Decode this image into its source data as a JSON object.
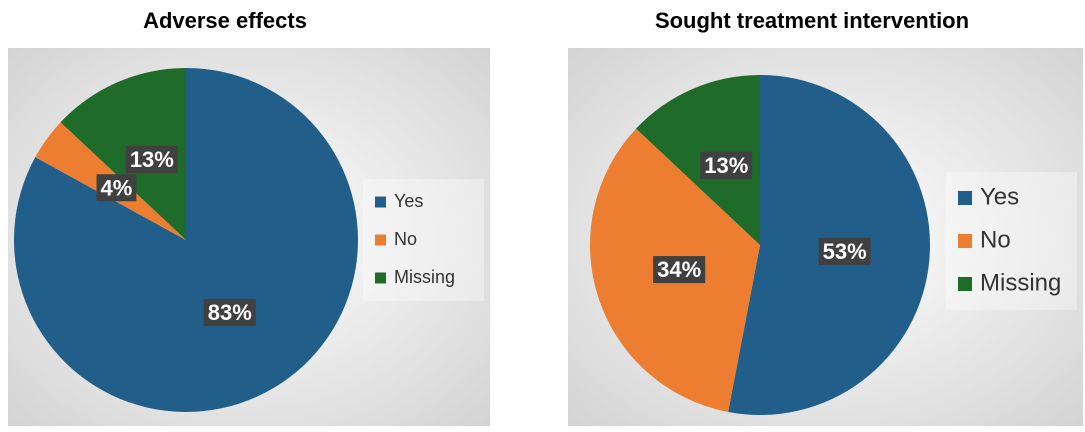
{
  "chart_data": [
    {
      "type": "pie",
      "title": "Adverse effects",
      "categories": [
        "Yes",
        "No",
        "Missing"
      ],
      "values": [
        83,
        4,
        13
      ],
      "value_labels": [
        "83%",
        "4%",
        "13%"
      ],
      "colors": [
        "#215f8a",
        "#ed7d31",
        "#1e6b2a"
      ],
      "legend": "right"
    },
    {
      "type": "pie",
      "title": "Sought treatment intervention",
      "categories": [
        "Yes",
        "No",
        "Missing"
      ],
      "values": [
        53,
        34,
        13
      ],
      "value_labels": [
        "53%",
        "34%",
        "13%"
      ],
      "colors": [
        "#215f8a",
        "#ed7d31",
        "#1e6b2a"
      ],
      "legend": "right"
    }
  ]
}
